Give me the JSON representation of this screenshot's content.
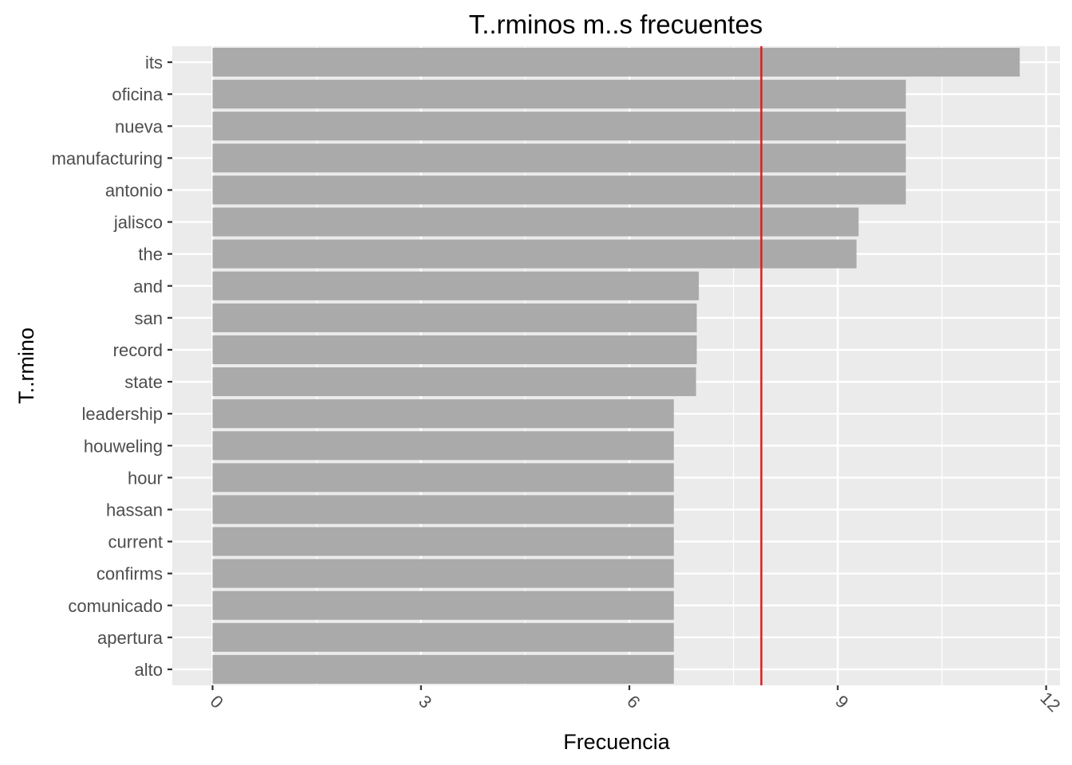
{
  "chart_data": {
    "type": "bar",
    "orientation": "horizontal",
    "title": "T..rminos m..s frecuentes",
    "xlabel": "Frecuencia",
    "ylabel": "T..rmino",
    "categories": [
      "its",
      "oficina",
      "nueva",
      "manufacturing",
      "antonio",
      "jalisco",
      "the",
      "and",
      "san",
      "record",
      "state",
      "leadership",
      "houweling",
      "hour",
      "hassan",
      "current",
      "confirms",
      "comunicado",
      "apertura",
      "alto"
    ],
    "values": [
      11.62,
      9.98,
      9.98,
      9.98,
      9.98,
      9.3,
      9.27,
      7.0,
      6.97,
      6.97,
      6.96,
      6.64,
      6.64,
      6.64,
      6.64,
      6.64,
      6.64,
      6.64,
      6.64,
      6.64
    ],
    "xlim": [
      -0.58,
      12.2
    ],
    "xticks": [
      "0",
      "3",
      "6",
      "9",
      "12"
    ],
    "reference_line": {
      "x": 7.9,
      "color": "#e41a1c"
    },
    "bar_color": "#aaaaaa",
    "panel_color": "#ebebeb",
    "grid": true
  }
}
